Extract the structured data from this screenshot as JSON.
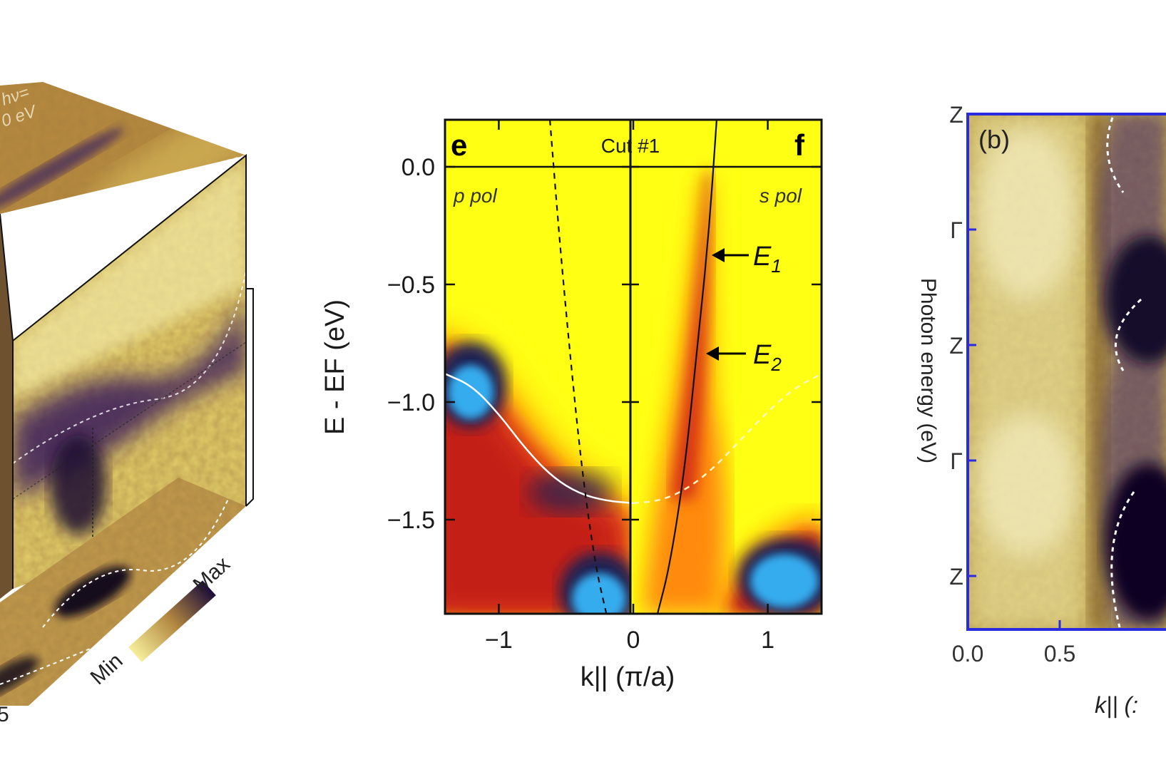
{
  "chart_data": [
    {
      "type": "heatmap",
      "panel": "3d-cube",
      "labels": {
        "photon_top": "hν=",
        "photon_bot": "0 eV",
        "colorbar_min": "Min",
        "colorbar_max": "Max",
        "corner": "5"
      },
      "colors": {
        "low": "#f2e35a",
        "mid": "#b87a2e",
        "high": "#24104a"
      }
    },
    {
      "type": "heatmap",
      "panel": "arpes-cut",
      "title": "Cut #1",
      "panel_left_letter": "e",
      "panel_right_letter": "f",
      "left_pol": "p pol",
      "right_pol": "s pol",
      "xlabel": "k|| (π/a)",
      "ylabel": "E - EF (eV)",
      "xlim": [
        -1.4,
        1.4
      ],
      "ylim": [
        -1.9,
        0.2
      ],
      "xticks": [
        -1,
        0,
        1
      ],
      "xtick_labels": [
        "−1",
        "0",
        "1"
      ],
      "yticks": [
        0.0,
        -0.5,
        -1.0,
        -1.5
      ],
      "ytick_labels": [
        "0.0",
        "−0.5",
        "−1.0",
        "−1.5"
      ],
      "annotations": [
        {
          "text": "E1",
          "x": 0.6,
          "y": -0.37
        },
        {
          "text": "E2",
          "x": 0.56,
          "y": -0.79
        }
      ],
      "series": [
        {
          "style": "white-solid",
          "x": [
            -1.4,
            -1.2,
            -1.0,
            -0.8,
            -0.6,
            -0.4,
            -0.2,
            0.0
          ],
          "y": [
            -0.88,
            -0.93,
            -1.05,
            -1.2,
            -1.32,
            -1.39,
            -1.42,
            -1.43
          ]
        },
        {
          "style": "white-dashed",
          "x": [
            0.0,
            0.2,
            0.4,
            0.6,
            0.8,
            1.0,
            1.2,
            1.4
          ],
          "y": [
            -1.43,
            -1.42,
            -1.37,
            -1.28,
            -1.16,
            -1.04,
            -0.94,
            -0.88
          ]
        },
        {
          "style": "black-dashed",
          "x": [
            -0.62,
            -0.55,
            -0.47,
            -0.38,
            -0.28,
            -0.2
          ],
          "y": [
            0.2,
            -0.3,
            -0.8,
            -1.3,
            -1.7,
            -1.9
          ]
        },
        {
          "style": "black-solid",
          "x": [
            0.62,
            0.56,
            0.47,
            0.38,
            0.27,
            0.18
          ],
          "y": [
            0.2,
            -0.3,
            -0.8,
            -1.3,
            -1.7,
            -1.9
          ]
        }
      ],
      "colors": {
        "background": "#ffff14",
        "orange": "#ff8a10",
        "red": "#c41a14",
        "navy": "#1a2454",
        "blue": "#2ea8e8"
      }
    },
    {
      "type": "heatmap",
      "panel": "kz-map",
      "panel_letter": "(b)",
      "ylabel": "Photon energy (eV)",
      "xlabel": "k|| (:",
      "xticks": [
        0.0,
        0.5
      ],
      "xtick_labels": [
        "0.0",
        "0.5"
      ],
      "yticks_labels": [
        "Z",
        "Γ",
        "Z",
        "Γ",
        "Z"
      ],
      "colors": {
        "frame": "#2a2ae0",
        "light": "#efeaa8",
        "mid": "#bea74a",
        "dark": "#130a26"
      }
    }
  ]
}
